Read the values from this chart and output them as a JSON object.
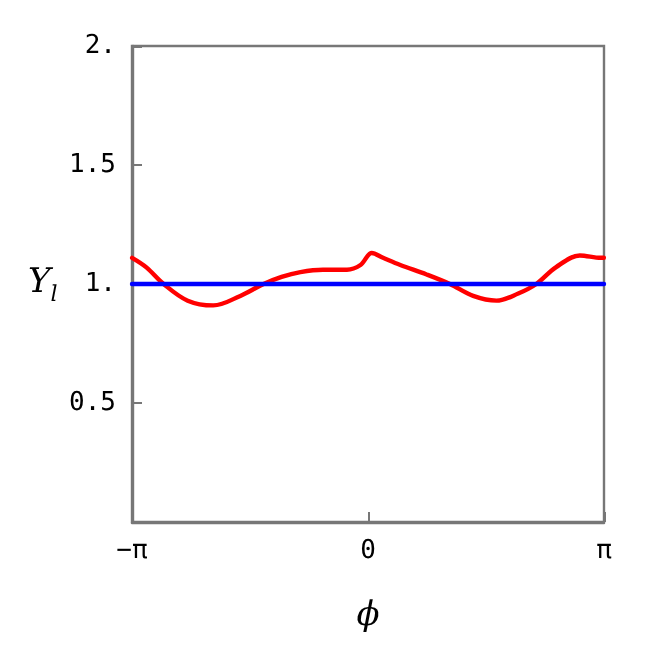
{
  "chart_data": {
    "type": "line",
    "xlabel": "ϕ",
    "ylabel": "Y$_{l}$",
    "xlim": [
      -3.1416,
      3.1416
    ],
    "xticks": [
      {
        "value": -3.1416,
        "label": "−π"
      },
      0,
      {
        "value": 3.1416,
        "label": "π"
      }
    ],
    "ylim": [
      0,
      2
    ],
    "yticks": [
      {
        "value": 0.5,
        "label": "0.5"
      },
      {
        "value": 1,
        "label": "1."
      },
      {
        "value": 1.5,
        "label": "1.5"
      },
      {
        "value": 2,
        "label": "2."
      }
    ],
    "grid": false,
    "marker": "none",
    "line_style": "solid",
    "series": [
      {
        "color": "#ff0000",
        "x": [
          -3.14,
          -2.95,
          -2.72,
          -2.4,
          -2.06,
          -1.7,
          -1.39,
          -1.15,
          -0.9,
          -0.6,
          -0.28,
          -0.1,
          0.05,
          0.2,
          0.43,
          0.78,
          1.09,
          1.4,
          1.71,
          2.0,
          2.24,
          2.5,
          2.82,
          3.1,
          3.14
        ],
        "values": [
          1.11,
          1.07,
          1.0,
          0.93,
          0.91,
          0.95,
          1.0,
          1.03,
          1.05,
          1.06,
          1.06,
          1.08,
          1.13,
          1.11,
          1.08,
          1.04,
          1.0,
          0.95,
          0.93,
          0.96,
          1.0,
          1.07,
          1.12,
          1.11,
          1.11
        ]
      },
      {
        "color": "#0000ff",
        "x": [
          -3.1416,
          3.1416
        ],
        "values": [
          1,
          1
        ]
      }
    ]
  }
}
